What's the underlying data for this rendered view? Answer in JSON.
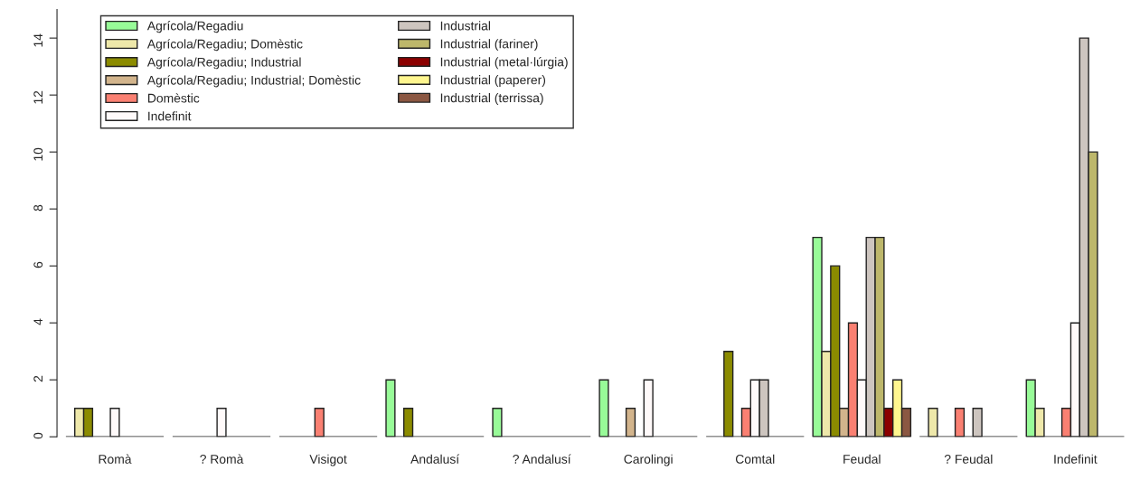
{
  "chart_data": {
    "type": "bar",
    "categories": [
      "Romà",
      "? Romà",
      "Visigot",
      "Andalusí",
      "? Andalusí",
      "Carolingi",
      "Comtal",
      "Feudal",
      "? Feudal",
      "Indefinit"
    ],
    "series": [
      {
        "name": "Agrícola/Regadiu",
        "color": "#98fb98",
        "values": [
          0,
          0,
          0,
          2,
          1,
          2,
          0,
          7,
          0,
          2
        ]
      },
      {
        "name": "Agrícola/Regadiu; Domèstic",
        "color": "#eee8aa",
        "values": [
          1,
          0,
          0,
          0,
          0,
          0,
          0,
          3,
          1,
          1
        ]
      },
      {
        "name": "Agrícola/Regadiu; Industrial",
        "color": "#8b8b00",
        "values": [
          1,
          0,
          0,
          1,
          0,
          0,
          3,
          6,
          0,
          0
        ]
      },
      {
        "name": "Agrícola/Regadiu; Industrial; Domèstic",
        "color": "#d2b48c",
        "values": [
          0,
          0,
          0,
          0,
          0,
          1,
          0,
          1,
          0,
          0
        ]
      },
      {
        "name": "Domèstic",
        "color": "#fa8072",
        "values": [
          0,
          0,
          1,
          0,
          0,
          0,
          1,
          4,
          1,
          1
        ]
      },
      {
        "name": "Indefinit",
        "color": "#fffafa",
        "values": [
          1,
          1,
          0,
          0,
          0,
          2,
          2,
          2,
          0,
          4
        ]
      },
      {
        "name": "Industrial",
        "color": "#cdc5bf",
        "values": [
          0,
          0,
          0,
          0,
          0,
          0,
          2,
          7,
          1,
          14
        ]
      },
      {
        "name": "Industrial (fariner)",
        "color": "#bdb76b",
        "values": [
          0,
          0,
          0,
          0,
          0,
          0,
          0,
          7,
          0,
          10
        ]
      },
      {
        "name": "Industrial (metal·lúrgia)",
        "color": "#8b0000",
        "values": [
          0,
          0,
          0,
          0,
          0,
          0,
          0,
          1,
          0,
          0
        ]
      },
      {
        "name": "Industrial (paperer)",
        "color": "#fff68f",
        "values": [
          0,
          0,
          0,
          0,
          0,
          0,
          0,
          2,
          0,
          0
        ]
      },
      {
        "name": "Industrial (terrissa)",
        "color": "#8b5742",
        "values": [
          0,
          0,
          0,
          0,
          0,
          0,
          0,
          1,
          0,
          0
        ]
      }
    ],
    "ylim": [
      0,
      15
    ],
    "yticks": [
      0,
      2,
      4,
      6,
      8,
      10,
      12,
      14
    ],
    "grid": false,
    "legend": "top left"
  }
}
